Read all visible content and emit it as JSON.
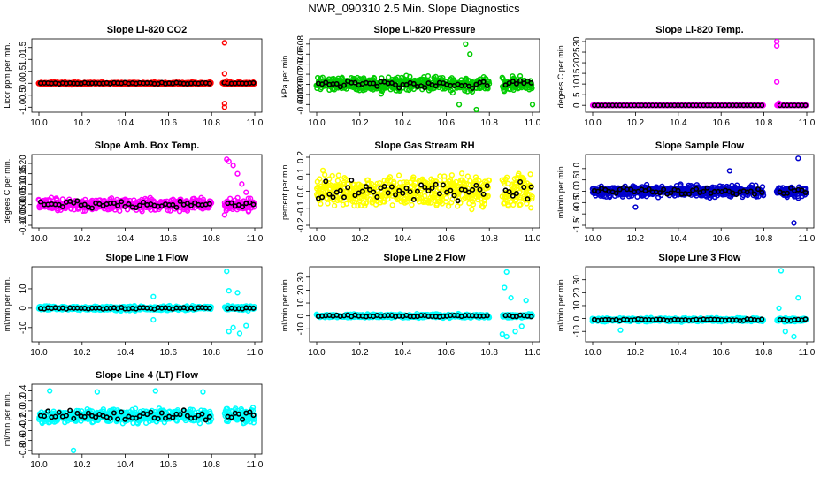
{
  "figure_title": "NWR_090310  2.5 Min. Slope Diagnostics",
  "chart_data": [
    {
      "type": "scatter",
      "title": "Slope Li-820 CO2",
      "ylabel": "Licor ppm per min.",
      "xlabel": "",
      "color": "#ff0000",
      "xlim": [
        10.0,
        11.0
      ],
      "ylim": [
        -1.1,
        1.75
      ],
      "xticks": [
        "10.0",
        "10.2",
        "10.4",
        "10.6",
        "10.8",
        "11.0"
      ],
      "yticks": [
        -1.0,
        -0.5,
        0.0,
        0.5,
        1.0,
        1.5
      ],
      "ytick_labels": [
        "-1.0",
        "-0.5",
        "0.0",
        "0.5",
        "1.0",
        "1.5"
      ],
      "gap": [
        10.8,
        10.85
      ],
      "center": 0.0,
      "spread": 0.07,
      "highlight_spread": 0.03,
      "outliers": [
        [
          10.86,
          1.7
        ],
        [
          10.86,
          0.4
        ],
        [
          10.86,
          -0.85
        ],
        [
          10.86,
          -1.0
        ],
        [
          10.87,
          0.1
        ]
      ]
    },
    {
      "type": "scatter",
      "title": "Slope Li-820 Pressure",
      "ylabel": "kPa per min.",
      "xlabel": "",
      "color": "#00cc00",
      "xlim": [
        10.0,
        11.0
      ],
      "ylim": [
        -0.05,
        0.085
      ],
      "xticks": [
        "10.0",
        "10.2",
        "10.4",
        "10.6",
        "10.8",
        "11.0"
      ],
      "yticks": [
        -0.04,
        -0.02,
        0.0,
        0.02,
        0.04,
        0.06,
        0.08
      ],
      "ytick_labels": [
        "-0.04",
        "-0.02",
        "0.00",
        "0.02",
        "0.04",
        "0.06",
        "0.08"
      ],
      "gap": [
        10.8,
        10.86
      ],
      "center": 0.0,
      "spread": 0.02,
      "highlight_spread": 0.008,
      "outliers": [
        [
          10.69,
          0.08
        ],
        [
          10.71,
          0.06
        ],
        [
          10.66,
          -0.04
        ],
        [
          10.74,
          -0.05
        ],
        [
          11.0,
          -0.04
        ]
      ]
    },
    {
      "type": "scatter",
      "title": "Slope Li-820 Temp.",
      "ylabel": "degees C per min.",
      "xlabel": "",
      "color": "#ff00ff",
      "xlim": [
        10.0,
        11.0
      ],
      "ylim": [
        -2,
        30
      ],
      "xticks": [
        "10.0",
        "10.2",
        "10.4",
        "10.6",
        "10.8",
        "11.0"
      ],
      "yticks": [
        0,
        5,
        10,
        15,
        20,
        25,
        30
      ],
      "ytick_labels": [
        "0",
        "5",
        "10",
        "15",
        "20",
        "25",
        "30"
      ],
      "gap": [
        10.8,
        10.86
      ],
      "center": 0.0,
      "spread": 0.0,
      "highlight_spread": 0.0,
      "outliers": [
        [
          10.86,
          30
        ],
        [
          10.86,
          28
        ],
        [
          10.86,
          11
        ],
        [
          10.87,
          1
        ]
      ]
    },
    {
      "type": "scatter",
      "title": "Slope Amb. Box Temp.",
      "ylabel": "degees C per min.",
      "xlabel": "",
      "color": "#ff00ff",
      "xlim": [
        10.0,
        11.0
      ],
      "ylim": [
        -0.1,
        0.23
      ],
      "xticks": [
        "10.0",
        "10.2",
        "10.4",
        "10.6",
        "10.8",
        "11.0"
      ],
      "yticks": [
        -0.1,
        -0.05,
        0.0,
        0.05,
        0.1,
        0.15,
        0.2
      ],
      "ytick_labels": [
        "-0.10",
        "-0.05",
        "0.00",
        "0.05",
        "0.10",
        "0.15",
        "0.20"
      ],
      "gap": [
        10.8,
        10.86
      ],
      "center": 0.0,
      "spread": 0.04,
      "highlight_spread": 0.02,
      "outliers": [
        [
          10.87,
          0.22
        ],
        [
          10.88,
          0.21
        ],
        [
          10.9,
          0.19
        ],
        [
          10.92,
          0.15
        ],
        [
          10.94,
          0.1
        ],
        [
          10.96,
          0.06
        ],
        [
          10.98,
          0.03
        ],
        [
          10.86,
          -0.05
        ]
      ]
    },
    {
      "type": "scatter",
      "title": "Slope Gas Stream RH",
      "ylabel": "percent per min.",
      "xlabel": "",
      "color": "#ffff00",
      "xlim": [
        10.0,
        11.0
      ],
      "ylim": [
        -0.2,
        0.2
      ],
      "xticks": [
        "10.0",
        "10.2",
        "10.4",
        "10.6",
        "10.8",
        "11.0"
      ],
      "yticks": [
        -0.2,
        -0.1,
        0.0,
        0.1,
        0.2
      ],
      "ytick_labels": [
        "-0.2",
        "-0.1",
        "0.0",
        "0.1",
        "0.2"
      ],
      "gap": [
        10.8,
        10.86
      ],
      "center": 0.0,
      "spread": 0.13,
      "highlight_spread": 0.07,
      "outliers": []
    },
    {
      "type": "scatter",
      "title": "Slope Sample Flow",
      "ylabel": "ml/min per min.",
      "xlabel": "",
      "color": "#0000cc",
      "xlim": [
        10.0,
        11.0
      ],
      "ylim": [
        -1.5,
        1.5
      ],
      "xticks": [
        "10.0",
        "10.2",
        "10.4",
        "10.6",
        "10.8",
        "11.0"
      ],
      "yticks": [
        -1.5,
        -1.0,
        -0.5,
        0.0,
        0.5,
        1.0
      ],
      "ytick_labels": [
        "-1.5",
        "-1.0",
        "-0.5",
        "0.0",
        "0.5",
        "1.0"
      ],
      "gap": [
        10.8,
        10.86
      ],
      "center": 0.0,
      "spread": 0.35,
      "highlight_spread": 0.2,
      "outliers": [
        [
          10.96,
          1.45
        ],
        [
          10.94,
          -1.4
        ],
        [
          10.64,
          0.9
        ],
        [
          10.2,
          -0.7
        ]
      ]
    },
    {
      "type": "scatter",
      "title": "Slope Line 1 Flow",
      "ylabel": "ml/min per min.",
      "xlabel": "",
      "color": "#00ffff",
      "xlim": [
        10.0,
        11.0
      ],
      "ylim": [
        -16,
        20
      ],
      "xticks": [
        "10.0",
        "10.2",
        "10.4",
        "10.6",
        "10.8",
        "11.0"
      ],
      "yticks": [
        -10,
        0,
        10
      ],
      "ytick_labels": [
        "-10",
        "0",
        "10"
      ],
      "gap": [
        10.8,
        10.86
      ],
      "center": 0.0,
      "spread": 1.5,
      "highlight_spread": 0.6,
      "outliers": [
        [
          10.87,
          19
        ],
        [
          10.88,
          9
        ],
        [
          10.9,
          -10
        ],
        [
          10.92,
          8
        ],
        [
          10.93,
          -13
        ],
        [
          10.96,
          -9
        ],
        [
          10.88,
          -12
        ],
        [
          10.53,
          6
        ],
        [
          10.53,
          -6
        ]
      ]
    },
    {
      "type": "scatter",
      "title": "Slope Line 2 Flow",
      "ylabel": "ml/min per min.",
      "xlabel": "",
      "color": "#00ffff",
      "xlim": [
        10.0,
        11.0
      ],
      "ylim": [
        -18,
        36
      ],
      "xticks": [
        "10.0",
        "10.2",
        "10.4",
        "10.6",
        "10.8",
        "11.0"
      ],
      "yticks": [
        -10,
        0,
        10,
        20,
        30
      ],
      "ytick_labels": [
        "-10",
        "0",
        "10",
        "20",
        "30"
      ],
      "gap": [
        10.8,
        10.86
      ],
      "center": 0.0,
      "spread": 2.0,
      "highlight_spread": 0.8,
      "outliers": [
        [
          10.88,
          34
        ],
        [
          10.87,
          22
        ],
        [
          10.9,
          14
        ],
        [
          10.86,
          -14
        ],
        [
          10.88,
          -16
        ],
        [
          10.92,
          -12
        ],
        [
          10.97,
          12
        ],
        [
          10.95,
          -8
        ]
      ]
    },
    {
      "type": "scatter",
      "title": "Slope Line 3 Flow",
      "ylabel": "ml/min per min.",
      "xlabel": "",
      "color": "#00ffff",
      "xlim": [
        10.0,
        11.0
      ],
      "ylim": [
        -16,
        38
      ],
      "xticks": [
        "10.0",
        "10.2",
        "10.4",
        "10.6",
        "10.8",
        "11.0"
      ],
      "yticks": [
        -10,
        0,
        10,
        20,
        30
      ],
      "ytick_labels": [
        "-10",
        "0",
        "10",
        "20",
        "30"
      ],
      "gap": [
        10.8,
        10.86
      ],
      "center": -1.0,
      "spread": 2.0,
      "highlight_spread": 0.8,
      "outliers": [
        [
          10.88,
          37
        ],
        [
          10.96,
          16
        ],
        [
          10.94,
          -14
        ],
        [
          10.9,
          -10
        ],
        [
          10.87,
          8
        ],
        [
          10.13,
          -9
        ]
      ]
    },
    {
      "type": "scatter",
      "title": "Slope Line 4 (LT) Flow",
      "ylabel": "ml/min per min.",
      "xlabel": "",
      "color": "#00ffff",
      "xlim": [
        10.0,
        11.0
      ],
      "ylim": [
        -0.82,
        0.48
      ],
      "xticks": [
        "10.0",
        "10.2",
        "10.4",
        "10.6",
        "10.8",
        "11.0"
      ],
      "yticks": [
        -0.8,
        -0.6,
        -0.4,
        -0.2,
        0.0,
        0.2,
        0.4
      ],
      "ytick_labels": [
        "-0.8",
        "-0.6",
        "-0.4",
        "-0.2",
        "0.0",
        "0.2",
        "0.4"
      ],
      "gap": [
        10.8,
        10.86
      ],
      "center": -0.1,
      "spread": 0.2,
      "highlight_spread": 0.12,
      "outliers": [
        [
          10.16,
          -0.8
        ],
        [
          10.05,
          0.4
        ],
        [
          10.27,
          0.38
        ],
        [
          10.54,
          0.4
        ],
        [
          10.76,
          0.38
        ]
      ]
    }
  ]
}
